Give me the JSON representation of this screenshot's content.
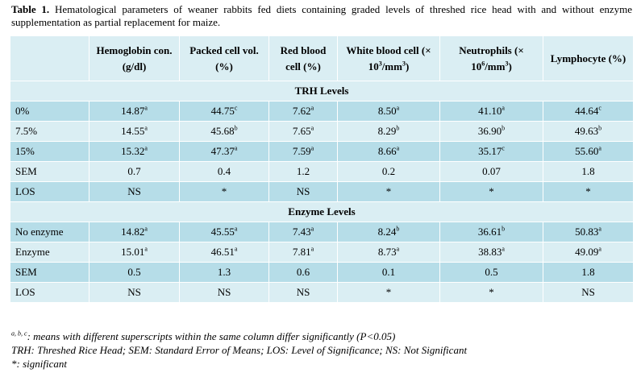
{
  "caption": {
    "label": "Table 1.",
    "text": "Hematological parameters of weaner rabbits fed diets containing graded levels of threshed rice head with and without enzyme supplementation as partial replacement for maize."
  },
  "table": {
    "header": [
      "Hemoglobin con. (g/dl)",
      "Packed cell vol. (%)",
      "Red blood cell (%)",
      [
        "White blood cell (× 10",
        {
          "sup": "3"
        },
        "/mm",
        {
          "sup": "3"
        },
        ")"
      ],
      [
        "Neutrophils (× 10",
        {
          "sup": "6"
        },
        "/mm",
        {
          "sup": "3"
        },
        ")"
      ],
      "Lymphocyte (%)"
    ],
    "sections": [
      {
        "title": "TRH Levels",
        "rows": [
          [
            "0%",
            {
              "text": "14.87",
              "sup": "a"
            },
            {
              "text": "44.75",
              "sup": "c"
            },
            {
              "text": "7.62",
              "sup": "a"
            },
            {
              "text": "8.50",
              "sup": "a"
            },
            {
              "text": "41.10",
              "sup": "a"
            },
            {
              "text": "44.64",
              "sup": "c"
            }
          ],
          [
            "7.5%",
            {
              "text": "14.55",
              "sup": "a"
            },
            {
              "text": "45.68",
              "sup": "b"
            },
            {
              "text": "7.65",
              "sup": "a"
            },
            {
              "text": "8.29",
              "sup": "b"
            },
            {
              "text": "36.90",
              "sup": "b"
            },
            {
              "text": "49.63",
              "sup": "b"
            }
          ],
          [
            "15%",
            {
              "text": "15.32",
              "sup": "a"
            },
            {
              "text": "47.37",
              "sup": "a"
            },
            {
              "text": "7.59",
              "sup": "a"
            },
            {
              "text": "8.66",
              "sup": "a"
            },
            {
              "text": "35.17",
              "sup": "c"
            },
            {
              "text": "55.60",
              "sup": "a"
            }
          ],
          [
            "SEM",
            "0.7",
            "0.4",
            "1.2",
            "0.2",
            "0.07",
            "1.8"
          ],
          [
            "LOS",
            "NS",
            "*",
            "NS",
            "*",
            "*",
            "*"
          ]
        ]
      },
      {
        "title": "Enzyme Levels",
        "rows": [
          [
            "No enzyme",
            {
              "text": "14.82",
              "sup": "a"
            },
            {
              "text": "45.55",
              "sup": "a"
            },
            {
              "text": "7.43",
              "sup": "a"
            },
            {
              "text": "8.24",
              "sup": "b"
            },
            {
              "text": "36.61",
              "sup": "b"
            },
            {
              "text": "50.83",
              "sup": "a"
            }
          ],
          [
            "Enzyme",
            {
              "text": "15.01",
              "sup": "a"
            },
            {
              "text": "46.51",
              "sup": "a"
            },
            {
              "text": "7.81",
              "sup": "a"
            },
            {
              "text": "8.73",
              "sup": "a"
            },
            {
              "text": "38.83",
              "sup": "a"
            },
            {
              "text": "49.09",
              "sup": "a"
            }
          ],
          [
            "SEM",
            "0.5",
            "1.3",
            "0.6",
            "0.1",
            "0.5",
            "1.8"
          ],
          [
            "LOS",
            "NS",
            "NS",
            "NS",
            "*",
            "*",
            "NS"
          ]
        ]
      }
    ]
  },
  "footnotes": [
    [
      {
        "sup": "a, b, c"
      },
      ": means with different superscripts within the same column differ significantly (P<0.05)"
    ],
    [
      "TRH: Threshed Rice Head; SEM: Standard Error of Means; LOS: Level of Significance; NS: Not Significant"
    ],
    [
      "*: significant"
    ]
  ]
}
